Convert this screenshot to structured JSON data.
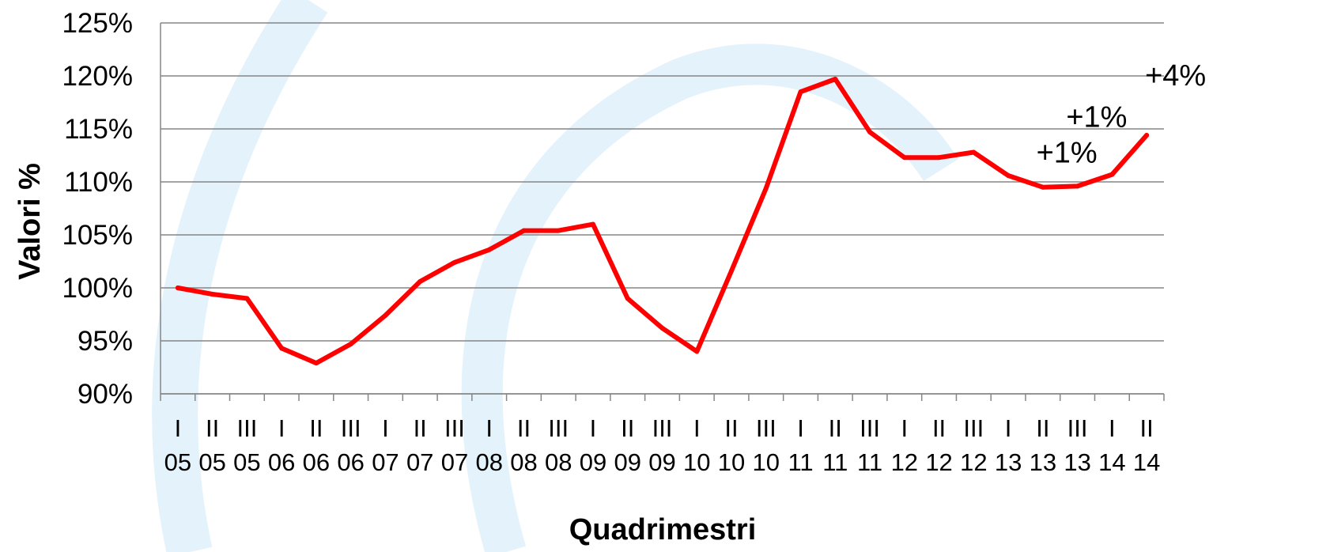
{
  "chart_data": {
    "type": "line",
    "title": "",
    "xlabel": "Quadrimestri",
    "ylabel": "Valori %",
    "ylim": [
      90,
      125
    ],
    "y_ticks": [
      "90%",
      "95%",
      "100%",
      "105%",
      "110%",
      "115%",
      "120%",
      "125%"
    ],
    "grid": "horizontal",
    "legend": "none",
    "categories": [
      [
        "I",
        "05"
      ],
      [
        "II",
        "05"
      ],
      [
        "III",
        "05"
      ],
      [
        "I",
        "06"
      ],
      [
        "II",
        "06"
      ],
      [
        "III",
        "06"
      ],
      [
        "I",
        "07"
      ],
      [
        "II",
        "07"
      ],
      [
        "III",
        "07"
      ],
      [
        "I",
        "08"
      ],
      [
        "II",
        "08"
      ],
      [
        "III",
        "08"
      ],
      [
        "I",
        "09"
      ],
      [
        "II",
        "09"
      ],
      [
        "III",
        "09"
      ],
      [
        "I",
        "10"
      ],
      [
        "II",
        "10"
      ],
      [
        "III",
        "10"
      ],
      [
        "I",
        "11"
      ],
      [
        "II",
        "11"
      ],
      [
        "III",
        "11"
      ],
      [
        "I",
        "12"
      ],
      [
        "II",
        "12"
      ],
      [
        "III",
        "12"
      ],
      [
        "I",
        "13"
      ],
      [
        "II",
        "13"
      ],
      [
        "III",
        "13"
      ],
      [
        "I",
        "14"
      ],
      [
        "II",
        "14"
      ]
    ],
    "series": [
      {
        "color": "#ff0000",
        "values": [
          100.0,
          99.4,
          99.0,
          94.3,
          92.9,
          94.7,
          97.4,
          100.6,
          102.4,
          103.6,
          105.4,
          105.4,
          106.0,
          99.0,
          96.2,
          94.0,
          101.6,
          109.4,
          118.5,
          119.7,
          114.7,
          112.3,
          112.3,
          112.8,
          110.6,
          109.5,
          109.6,
          110.7,
          114.4
        ]
      }
    ],
    "annotations": [
      {
        "text": "+1%",
        "category_index": 26,
        "y": 109.6
      },
      {
        "text": "+1%",
        "category_index": 27,
        "y": 110.7
      },
      {
        "text": "+4%",
        "category_index": 28,
        "y": 114.4
      }
    ],
    "line_color": "#ff0000",
    "grid_color": "#868686",
    "background_arc_color": "#e3f2fb"
  }
}
